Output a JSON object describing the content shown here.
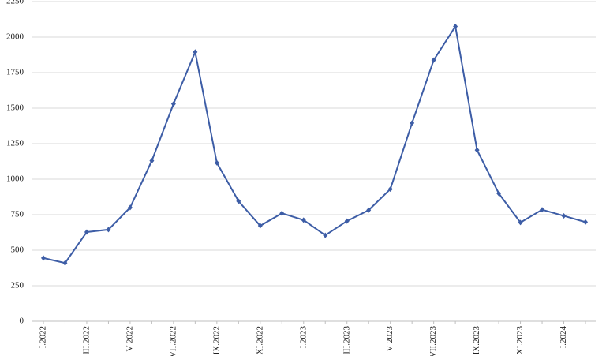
{
  "chart_data": {
    "type": "line",
    "categories": [
      "I.2022",
      null,
      "III.2022",
      null,
      "V 2022",
      null,
      "VII.2022",
      null,
      "IX.2022",
      null,
      "XI.2022",
      null,
      "I.2023",
      null,
      "III.2023",
      null,
      "V 2023",
      null,
      "VII.2023",
      null,
      "IX.2023",
      null,
      "XI.2023",
      null,
      "I.2024",
      null
    ],
    "values": [
      445,
      410,
      628,
      645,
      800,
      1130,
      1530,
      1895,
      1115,
      845,
      672,
      760,
      712,
      605,
      705,
      782,
      930,
      1395,
      1838,
      2075,
      1205,
      900,
      695,
      785,
      742,
      698
    ],
    "color": "#3d5da6",
    "ylim": [
      0,
      2250
    ],
    "yticks": [
      0,
      250,
      500,
      750,
      1000,
      1250,
      1500,
      1750,
      2000,
      2250
    ],
    "grid": true
  }
}
